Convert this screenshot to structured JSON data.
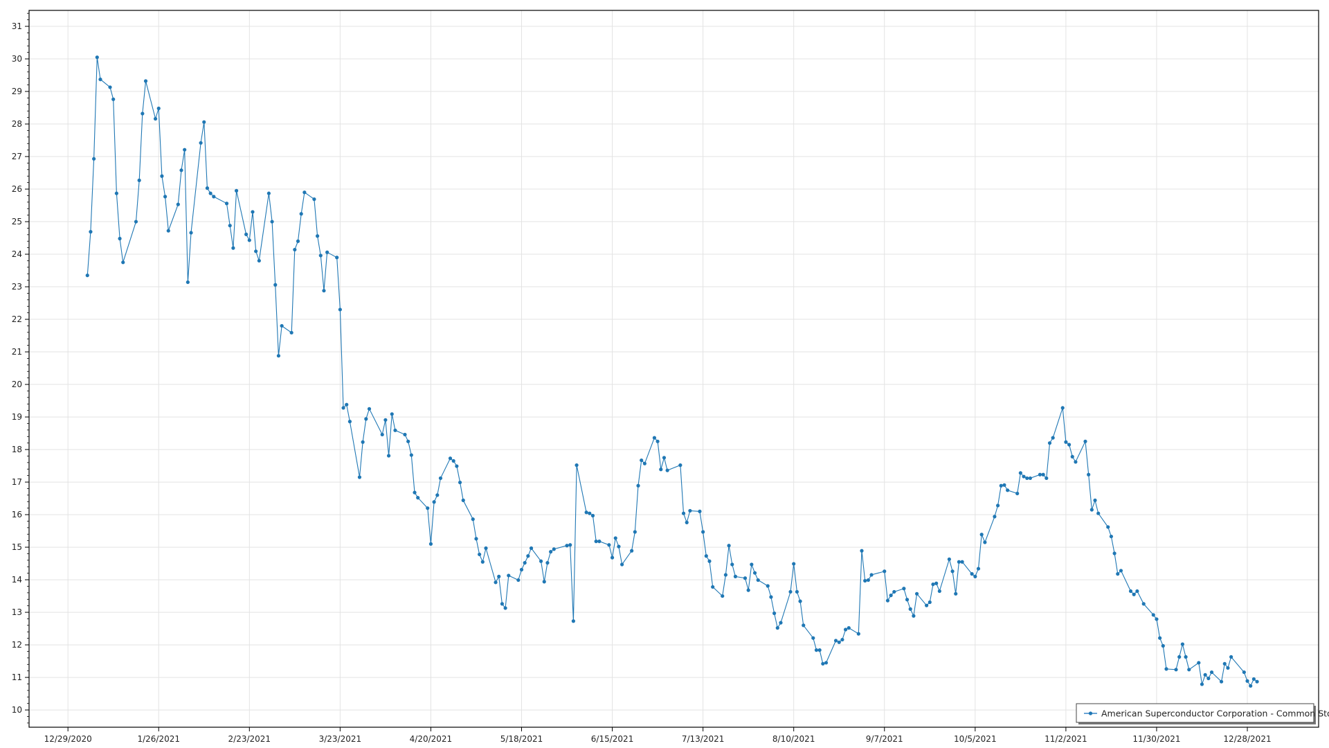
{
  "chart_data": {
    "type": "line",
    "title": "",
    "xlabel": "",
    "ylabel": "",
    "xlim": [
      "2020-12-17",
      "2022-01-19"
    ],
    "ylim": [
      9.47,
      31.49
    ],
    "x_ticks": [
      "12/29/2020",
      "1/26/2021",
      "2/23/2021",
      "3/23/2021",
      "4/20/2021",
      "5/18/2021",
      "6/15/2021",
      "7/13/2021",
      "8/10/2021",
      "9/7/2021",
      "10/5/2021",
      "11/2/2021",
      "11/30/2021",
      "12/28/2021"
    ],
    "y_ticks": [
      10,
      11,
      12,
      13,
      14,
      15,
      16,
      17,
      18,
      19,
      20,
      21,
      22,
      23,
      24,
      25,
      26,
      27,
      28,
      29,
      30,
      31
    ],
    "grid": true,
    "legend_position": "bottom-right",
    "colors": {
      "series": "#1f77b4",
      "grid": "#e3e3e3",
      "axis": "#000000"
    },
    "series": [
      {
        "name": "American Superconductor Corporation - Common Stock",
        "marker": "circle",
        "points": [
          [
            "2021-01-04",
            23.35
          ],
          [
            "2021-01-05",
            24.69
          ],
          [
            "2021-01-06",
            26.93
          ],
          [
            "2021-01-07",
            30.05
          ],
          [
            "2021-01-08",
            29.37
          ],
          [
            "2021-01-11",
            29.13
          ],
          [
            "2021-01-12",
            28.76
          ],
          [
            "2021-01-13",
            25.87
          ],
          [
            "2021-01-14",
            24.48
          ],
          [
            "2021-01-15",
            23.75
          ],
          [
            "2021-01-19",
            25.0
          ],
          [
            "2021-01-20",
            26.27
          ],
          [
            "2021-01-21",
            28.32
          ],
          [
            "2021-01-22",
            29.32
          ],
          [
            "2021-01-25",
            28.16
          ],
          [
            "2021-01-26",
            28.48
          ],
          [
            "2021-01-27",
            26.4
          ],
          [
            "2021-01-28",
            25.77
          ],
          [
            "2021-01-29",
            24.72
          ],
          [
            "2021-02-01",
            25.53
          ],
          [
            "2021-02-02",
            26.58
          ],
          [
            "2021-02-03",
            27.21
          ],
          [
            "2021-02-04",
            23.14
          ],
          [
            "2021-02-05",
            24.66
          ],
          [
            "2021-02-08",
            27.42
          ],
          [
            "2021-02-09",
            28.06
          ],
          [
            "2021-02-10",
            26.03
          ],
          [
            "2021-02-11",
            25.87
          ],
          [
            "2021-02-12",
            25.77
          ],
          [
            "2021-02-16",
            25.56
          ],
          [
            "2021-02-17",
            24.88
          ],
          [
            "2021-02-18",
            24.19
          ],
          [
            "2021-02-19",
            25.95
          ],
          [
            "2021-02-22",
            24.61
          ],
          [
            "2021-02-23",
            24.43
          ],
          [
            "2021-02-24",
            25.3
          ],
          [
            "2021-02-25",
            24.09
          ],
          [
            "2021-02-26",
            23.8
          ],
          [
            "2021-03-01",
            25.87
          ],
          [
            "2021-03-02",
            25.0
          ],
          [
            "2021-03-03",
            23.06
          ],
          [
            "2021-03-04",
            20.88
          ],
          [
            "2021-03-05",
            21.8
          ],
          [
            "2021-03-08",
            21.59
          ],
          [
            "2021-03-09",
            24.14
          ],
          [
            "2021-03-10",
            24.4
          ],
          [
            "2021-03-11",
            25.24
          ],
          [
            "2021-03-12",
            25.9
          ],
          [
            "2021-03-15",
            25.69
          ],
          [
            "2021-03-16",
            24.56
          ],
          [
            "2021-03-17",
            23.96
          ],
          [
            "2021-03-18",
            22.88
          ],
          [
            "2021-03-19",
            24.06
          ],
          [
            "2021-03-22",
            23.9
          ],
          [
            "2021-03-23",
            22.3
          ],
          [
            "2021-03-24",
            19.28
          ],
          [
            "2021-03-25",
            19.38
          ],
          [
            "2021-03-26",
            18.86
          ],
          [
            "2021-03-29",
            17.15
          ],
          [
            "2021-03-30",
            18.23
          ],
          [
            "2021-03-31",
            18.94
          ],
          [
            "2021-04-01",
            19.25
          ],
          [
            "2021-04-05",
            18.46
          ],
          [
            "2021-04-06",
            18.91
          ],
          [
            "2021-04-07",
            17.81
          ],
          [
            "2021-04-08",
            19.09
          ],
          [
            "2021-04-09",
            18.59
          ],
          [
            "2021-04-12",
            18.46
          ],
          [
            "2021-04-13",
            18.25
          ],
          [
            "2021-04-14",
            17.83
          ],
          [
            "2021-04-15",
            16.68
          ],
          [
            "2021-04-16",
            16.52
          ],
          [
            "2021-04-19",
            16.2
          ],
          [
            "2021-04-20",
            15.1
          ],
          [
            "2021-04-21",
            16.39
          ],
          [
            "2021-04-22",
            16.6
          ],
          [
            "2021-04-23",
            17.12
          ],
          [
            "2021-04-26",
            17.73
          ],
          [
            "2021-04-27",
            17.65
          ],
          [
            "2021-04-28",
            17.49
          ],
          [
            "2021-04-29",
            16.99
          ],
          [
            "2021-04-30",
            16.44
          ],
          [
            "2021-05-03",
            15.86
          ],
          [
            "2021-05-04",
            15.26
          ],
          [
            "2021-05-05",
            14.78
          ],
          [
            "2021-05-06",
            14.55
          ],
          [
            "2021-05-07",
            14.97
          ],
          [
            "2021-05-10",
            13.92
          ],
          [
            "2021-05-11",
            14.1
          ],
          [
            "2021-05-12",
            13.26
          ],
          [
            "2021-05-13",
            13.13
          ],
          [
            "2021-05-14",
            14.13
          ],
          [
            "2021-05-17",
            13.99
          ],
          [
            "2021-05-18",
            14.31
          ],
          [
            "2021-05-19",
            14.52
          ],
          [
            "2021-05-20",
            14.73
          ],
          [
            "2021-05-21",
            14.97
          ],
          [
            "2021-05-24",
            14.57
          ],
          [
            "2021-05-25",
            13.94
          ],
          [
            "2021-05-26",
            14.52
          ],
          [
            "2021-05-27",
            14.86
          ],
          [
            "2021-05-28",
            14.94
          ],
          [
            "2021-06-01",
            15.05
          ],
          [
            "2021-06-02",
            15.07
          ],
          [
            "2021-06-03",
            12.73
          ],
          [
            "2021-06-04",
            17.52
          ],
          [
            "2021-06-07",
            16.07
          ],
          [
            "2021-06-08",
            16.04
          ],
          [
            "2021-06-09",
            15.97
          ],
          [
            "2021-06-10",
            15.18
          ],
          [
            "2021-06-11",
            15.18
          ],
          [
            "2021-06-14",
            15.07
          ],
          [
            "2021-06-15",
            14.68
          ],
          [
            "2021-06-16",
            15.28
          ],
          [
            "2021-06-17",
            15.02
          ],
          [
            "2021-06-18",
            14.47
          ],
          [
            "2021-06-21",
            14.89
          ],
          [
            "2021-06-22",
            15.47
          ],
          [
            "2021-06-23",
            16.89
          ],
          [
            "2021-06-24",
            17.67
          ],
          [
            "2021-06-25",
            17.57
          ],
          [
            "2021-06-28",
            18.36
          ],
          [
            "2021-06-29",
            18.25
          ],
          [
            "2021-06-30",
            17.39
          ],
          [
            "2021-07-01",
            17.75
          ],
          [
            "2021-07-02",
            17.36
          ],
          [
            "2021-07-06",
            17.52
          ],
          [
            "2021-07-07",
            16.04
          ],
          [
            "2021-07-08",
            15.76
          ],
          [
            "2021-07-09",
            16.12
          ],
          [
            "2021-07-12",
            16.1
          ],
          [
            "2021-07-13",
            15.47
          ],
          [
            "2021-07-14",
            14.73
          ],
          [
            "2021-07-15",
            14.57
          ],
          [
            "2021-07-16",
            13.78
          ],
          [
            "2021-07-19",
            13.5
          ],
          [
            "2021-07-20",
            14.15
          ],
          [
            "2021-07-21",
            15.05
          ],
          [
            "2021-07-22",
            14.47
          ],
          [
            "2021-07-23",
            14.1
          ],
          [
            "2021-07-26",
            14.05
          ],
          [
            "2021-07-27",
            13.68
          ],
          [
            "2021-07-28",
            14.47
          ],
          [
            "2021-07-29",
            14.21
          ],
          [
            "2021-07-30",
            13.99
          ],
          [
            "2021-08-02",
            13.81
          ],
          [
            "2021-08-03",
            13.47
          ],
          [
            "2021-08-04",
            12.97
          ],
          [
            "2021-08-05",
            12.52
          ],
          [
            "2021-08-06",
            12.68
          ],
          [
            "2021-08-09",
            13.63
          ],
          [
            "2021-08-10",
            14.49
          ],
          [
            "2021-08-11",
            13.63
          ],
          [
            "2021-08-12",
            13.34
          ],
          [
            "2021-08-13",
            12.6
          ],
          [
            "2021-08-16",
            12.21
          ],
          [
            "2021-08-17",
            11.84
          ],
          [
            "2021-08-18",
            11.84
          ],
          [
            "2021-08-19",
            11.42
          ],
          [
            "2021-08-20",
            11.45
          ],
          [
            "2021-08-23",
            12.13
          ],
          [
            "2021-08-24",
            12.08
          ],
          [
            "2021-08-25",
            12.16
          ],
          [
            "2021-08-26",
            12.47
          ],
          [
            "2021-08-27",
            12.52
          ],
          [
            "2021-08-30",
            12.34
          ],
          [
            "2021-08-31",
            14.89
          ],
          [
            "2021-09-01",
            13.97
          ],
          [
            "2021-09-02",
            13.99
          ],
          [
            "2021-09-03",
            14.15
          ],
          [
            "2021-09-07",
            14.26
          ],
          [
            "2021-09-08",
            13.36
          ],
          [
            "2021-09-09",
            13.52
          ],
          [
            "2021-09-10",
            13.63
          ],
          [
            "2021-09-13",
            13.73
          ],
          [
            "2021-09-14",
            13.39
          ],
          [
            "2021-09-15",
            13.1
          ],
          [
            "2021-09-16",
            12.89
          ],
          [
            "2021-09-17",
            13.57
          ],
          [
            "2021-09-20",
            13.21
          ],
          [
            "2021-09-21",
            13.31
          ],
          [
            "2021-09-22",
            13.86
          ],
          [
            "2021-09-23",
            13.89
          ],
          [
            "2021-09-24",
            13.65
          ],
          [
            "2021-09-27",
            14.63
          ],
          [
            "2021-09-28",
            14.26
          ],
          [
            "2021-09-29",
            13.57
          ],
          [
            "2021-09-30",
            14.55
          ],
          [
            "2021-10-01",
            14.55
          ],
          [
            "2021-10-04",
            14.18
          ],
          [
            "2021-10-05",
            14.1
          ],
          [
            "2021-10-06",
            14.34
          ],
          [
            "2021-10-07",
            15.39
          ],
          [
            "2021-10-08",
            15.15
          ],
          [
            "2021-10-11",
            15.94
          ],
          [
            "2021-10-12",
            16.28
          ],
          [
            "2021-10-13",
            16.89
          ],
          [
            "2021-10-14",
            16.91
          ],
          [
            "2021-10-15",
            16.75
          ],
          [
            "2021-10-18",
            16.65
          ],
          [
            "2021-10-19",
            17.28
          ],
          [
            "2021-10-20",
            17.17
          ],
          [
            "2021-10-21",
            17.12
          ],
          [
            "2021-10-22",
            17.12
          ],
          [
            "2021-10-25",
            17.23
          ],
          [
            "2021-10-26",
            17.23
          ],
          [
            "2021-10-27",
            17.12
          ],
          [
            "2021-10-28",
            18.2
          ],
          [
            "2021-10-29",
            18.36
          ],
          [
            "2021-11-01",
            19.28
          ],
          [
            "2021-11-02",
            18.23
          ],
          [
            "2021-11-03",
            18.15
          ],
          [
            "2021-11-04",
            17.78
          ],
          [
            "2021-11-05",
            17.62
          ],
          [
            "2021-11-08",
            18.25
          ],
          [
            "2021-11-09",
            17.23
          ],
          [
            "2021-11-10",
            16.15
          ],
          [
            "2021-11-11",
            16.44
          ],
          [
            "2021-11-12",
            16.04
          ],
          [
            "2021-11-15",
            15.62
          ],
          [
            "2021-11-16",
            15.33
          ],
          [
            "2021-11-17",
            14.81
          ],
          [
            "2021-11-18",
            14.18
          ],
          [
            "2021-11-19",
            14.28
          ],
          [
            "2021-11-22",
            13.65
          ],
          [
            "2021-11-23",
            13.55
          ],
          [
            "2021-11-24",
            13.65
          ],
          [
            "2021-11-26",
            13.26
          ],
          [
            "2021-11-29",
            12.92
          ],
          [
            "2021-11-30",
            12.79
          ],
          [
            "2021-12-01",
            12.21
          ],
          [
            "2021-12-02",
            11.97
          ],
          [
            "2021-12-03",
            11.26
          ],
          [
            "2021-12-06",
            11.24
          ],
          [
            "2021-12-07",
            11.63
          ],
          [
            "2021-12-08",
            12.02
          ],
          [
            "2021-12-09",
            11.63
          ],
          [
            "2021-12-10",
            11.24
          ],
          [
            "2021-12-13",
            11.45
          ],
          [
            "2021-12-14",
            10.79
          ],
          [
            "2021-12-15",
            11.08
          ],
          [
            "2021-12-16",
            10.97
          ],
          [
            "2021-12-17",
            11.16
          ],
          [
            "2021-12-20",
            10.87
          ],
          [
            "2021-12-21",
            11.42
          ],
          [
            "2021-12-22",
            11.29
          ],
          [
            "2021-12-23",
            11.63
          ],
          [
            "2021-12-27",
            11.16
          ],
          [
            "2021-12-28",
            10.89
          ],
          [
            "2021-12-29",
            10.74
          ],
          [
            "2021-12-30",
            10.95
          ],
          [
            "2021-12-31",
            10.87
          ]
        ]
      }
    ]
  }
}
